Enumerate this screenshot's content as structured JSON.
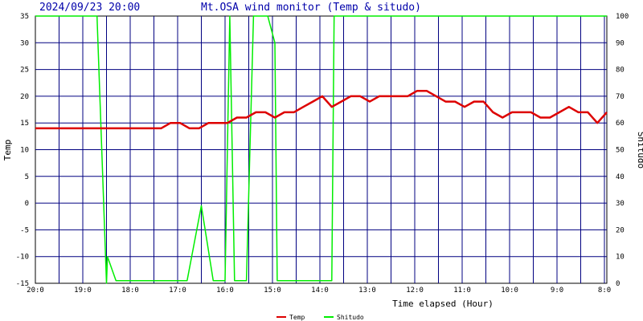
{
  "header": {
    "timestamp": "2024/09/23 20:00",
    "title": "Mt.OSA wind monitor (Temp & situdo)"
  },
  "colors": {
    "temp": "#dd0000",
    "shitudo": "#00ee00",
    "grid": "#000080",
    "title": "#0000aa"
  },
  "chart_data": {
    "type": "line",
    "xlabel": "Time elapsed (Hour)",
    "ylabel_left": "Temp",
    "ylabel_right": "Shitudo",
    "x_ticks": [
      "20:0",
      "19:0",
      "18:0",
      "17:0",
      "16:0",
      "15:0",
      "14:0",
      "13:0",
      "12:0",
      "11:0",
      "10:0",
      "9:0",
      "8:0"
    ],
    "ylim_left": [
      -15,
      35
    ],
    "yticks_left": [
      35,
      30,
      25,
      20,
      15,
      10,
      5,
      0,
      -5,
      -10,
      -15
    ],
    "ylim_right": [
      0,
      100
    ],
    "yticks_right": [
      100,
      90,
      80,
      70,
      60,
      50,
      40,
      30,
      20,
      10,
      0
    ],
    "grid": true,
    "legend_position": "bottom-center",
    "series": [
      {
        "name": "Temp",
        "axis": "left",
        "x_hours_elapsed": [
          0,
          2.65,
          2.85,
          3.05,
          3.25,
          3.45,
          3.65,
          3.85,
          4.05,
          4.25,
          4.45,
          4.65,
          4.85,
          5.05,
          5.25,
          5.45,
          5.65,
          5.85,
          6.05,
          6.25,
          6.45,
          6.65,
          6.85,
          7.05,
          7.25,
          7.45,
          7.65,
          7.85,
          8.05,
          8.25,
          8.65,
          8.85,
          9.05,
          9.25,
          9.45,
          9.65,
          9.85,
          10.05,
          10.25,
          10.45,
          10.65,
          10.85,
          11.05,
          11.25,
          11.45,
          11.65,
          11.85,
          12.05
        ],
        "values": [
          14,
          14,
          15,
          15,
          14,
          14,
          15,
          15,
          15,
          16,
          16,
          17,
          17,
          16,
          17,
          17,
          18,
          19,
          20,
          18,
          19,
          20,
          20,
          19,
          20,
          20,
          20,
          20,
          21,
          21,
          19,
          19,
          18,
          19,
          19,
          17,
          16,
          17,
          17,
          17,
          16,
          16,
          17,
          18,
          17,
          17,
          15,
          17
        ]
      },
      {
        "name": "Shitudo",
        "axis": "right",
        "x_hours_elapsed": [
          0,
          1.3,
          1.5,
          1.52,
          1.7,
          3.2,
          3.5,
          3.75,
          3.95,
          4.0,
          4.1,
          4.2,
          4.45,
          4.6,
          4.9,
          5.05,
          5.1,
          5.3,
          5.45,
          6.05,
          6.25,
          6.3,
          12.05
        ],
        "values": [
          100,
          100,
          0,
          10,
          1,
          1,
          29,
          1,
          1,
          1,
          100,
          1,
          1,
          100,
          100,
          90,
          1,
          1,
          1,
          1,
          1,
          100,
          100
        ]
      }
    ]
  },
  "legend": {
    "temp_label": "Temp",
    "shitudo_label": "Shitudo"
  }
}
